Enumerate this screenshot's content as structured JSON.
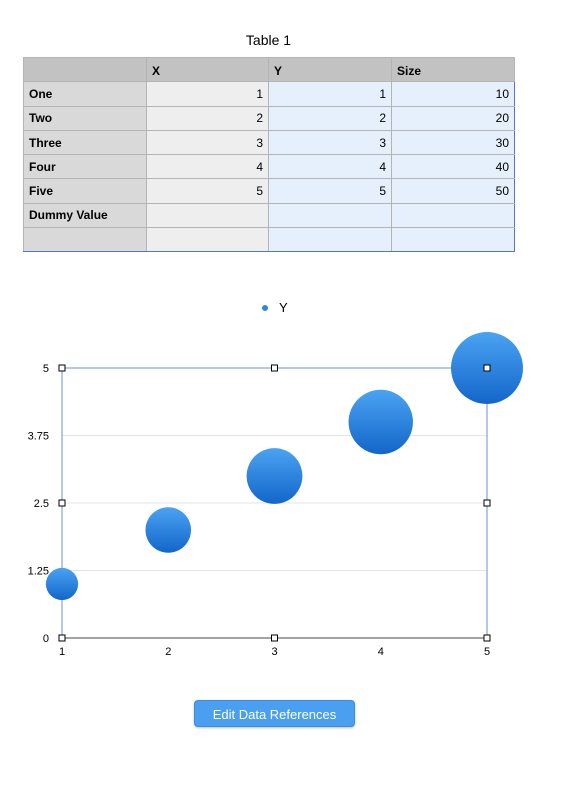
{
  "table": {
    "title": "Table 1",
    "headers": [
      "",
      "X",
      "Y",
      "Size"
    ],
    "rows": [
      {
        "label": "One",
        "x": "1",
        "y": "1",
        "size": "10"
      },
      {
        "label": "Two",
        "x": "2",
        "y": "2",
        "size": "20"
      },
      {
        "label": "Three",
        "x": "3",
        "y": "3",
        "size": "30"
      },
      {
        "label": "Four",
        "x": "4",
        "y": "4",
        "size": "40"
      },
      {
        "label": "Five",
        "x": "5",
        "y": "5",
        "size": "50"
      },
      {
        "label": "Dummy Value",
        "x": "",
        "y": "",
        "size": ""
      },
      {
        "label": "",
        "x": "",
        "y": "",
        "size": ""
      }
    ]
  },
  "chart_data": {
    "type": "scatter",
    "subtype": "bubble",
    "series": [
      {
        "name": "Y",
        "color": "#2f86e2",
        "x": [
          1,
          2,
          3,
          4,
          5
        ],
        "y": [
          1,
          2,
          3,
          4,
          5
        ],
        "size": [
          10,
          20,
          30,
          40,
          50
        ]
      }
    ],
    "xlim": [
      1,
      5
    ],
    "ylim": [
      0,
      5
    ],
    "x_ticks": [
      "1",
      "2",
      "3",
      "4",
      "5"
    ],
    "y_ticks": [
      "0",
      "1.25",
      "2.5",
      "3.75",
      "5"
    ],
    "grid": "horizontal",
    "legend": "top-center"
  },
  "button": {
    "edit_label": "Edit Data References"
  }
}
